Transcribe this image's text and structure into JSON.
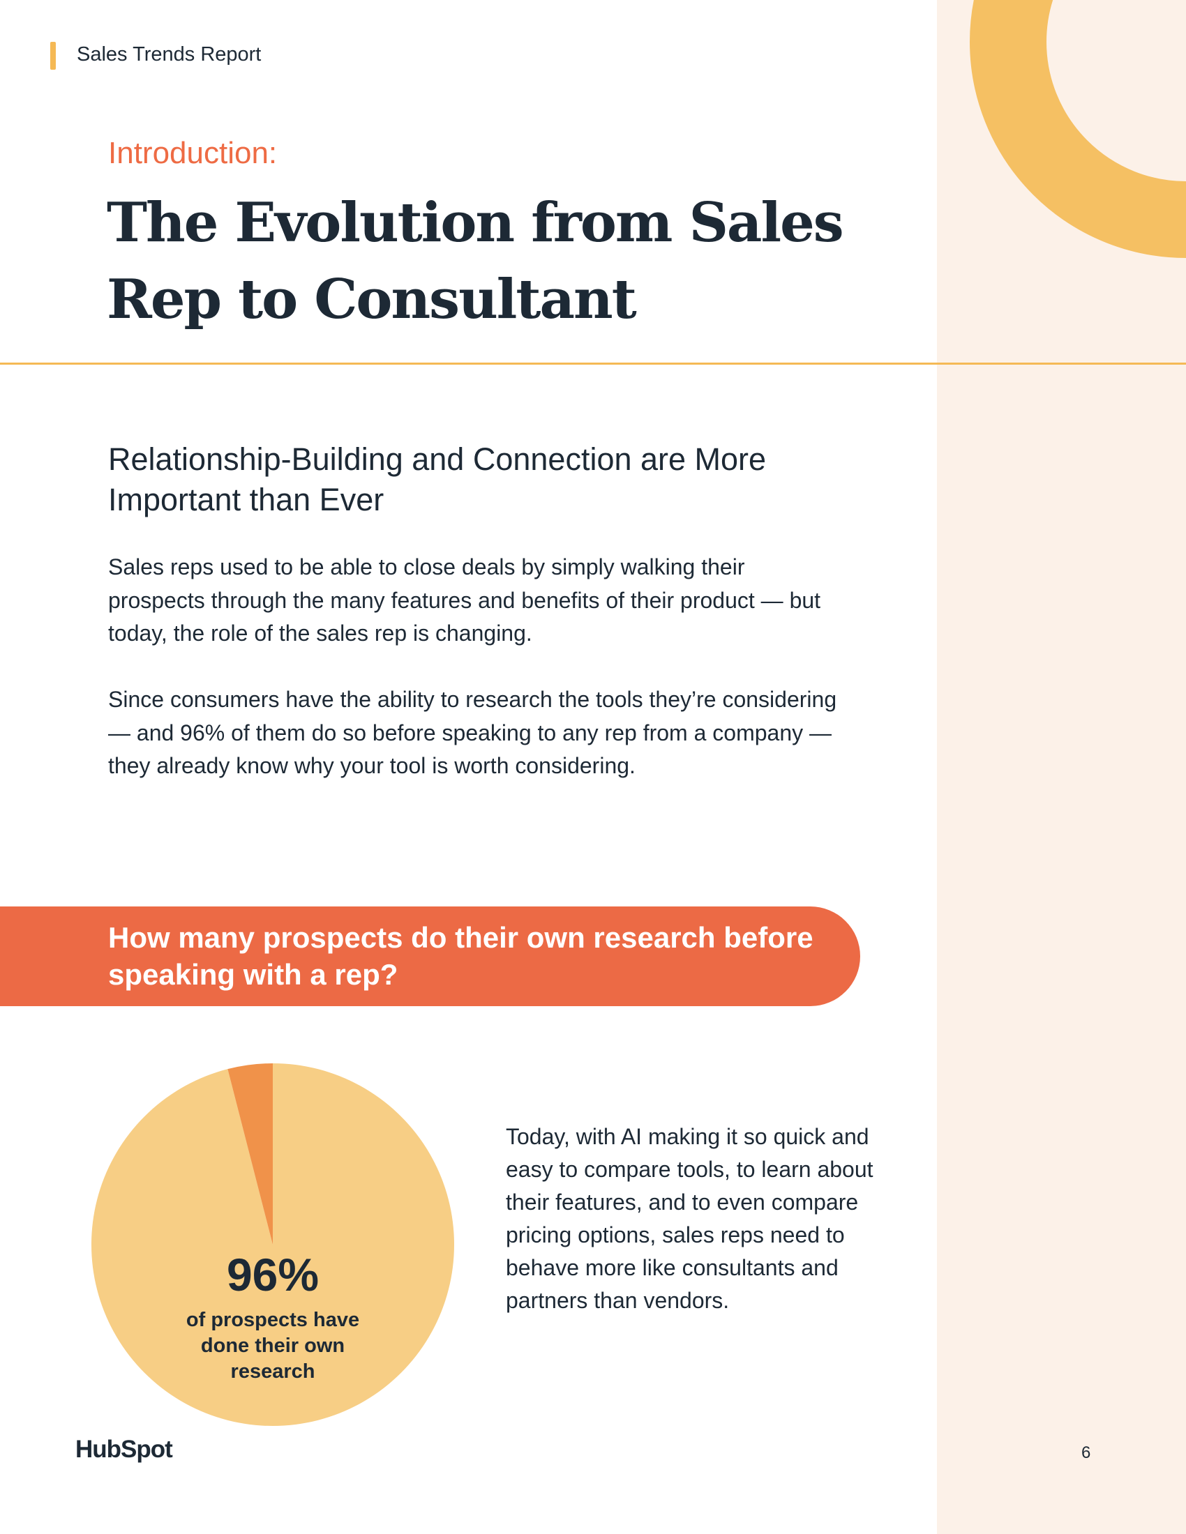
{
  "header": {
    "title": "Sales Trends Report"
  },
  "intro": {
    "label": "Introduction:",
    "title": "The Evolution from Sales Rep to Consultant"
  },
  "section": {
    "heading": "Relationship-Building and Connection are More Important than Ever",
    "paragraphs": [
      "Sales reps used to be able to close deals by simply walking their prospects through the many features and benefits of their product — but today, the role of the sales rep is changing.",
      "Since consumers have the ability to research the tools they’re considering — and 96% of them do so before speaking to any rep from a company — they already know why your tool is worth considering."
    ]
  },
  "callout": {
    "question": "How many prospects do their own research before speaking with a rep?"
  },
  "chart_data": {
    "type": "pie",
    "slices": [
      {
        "label": "did their own research",
        "value": 96,
        "color": "#f7ce85"
      },
      {
        "label": "other",
        "value": 4,
        "color": "#f0924a"
      }
    ],
    "stat": "96%",
    "caption": "of prospects have done their own research"
  },
  "side_text": "Today, with AI making it so quick and easy to compare tools, to learn about their features, and to even compare pricing options, sales reps need to behave more like consultants and partners than vendors.",
  "footer": {
    "logo": "HubSpot",
    "page_number": "6"
  },
  "colors": {
    "accent_orange": "#ec6a45",
    "accent_yellow": "#f5b955",
    "side_panel": "#fcf1e8",
    "text_dark": "#1d2935"
  }
}
